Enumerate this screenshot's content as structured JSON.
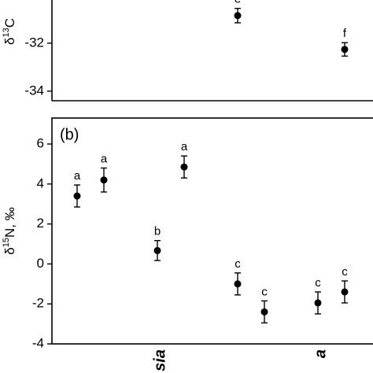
{
  "chart_data": [
    {
      "type": "dot",
      "ylabel": [
        "δ",
        "13",
        "C"
      ],
      "categories": [
        null,
        null,
        null,
        null,
        null,
        null,
        null,
        null,
        null,
        null,
        null
      ],
      "values": [
        null,
        null,
        null,
        null,
        null,
        null,
        -30.85,
        null,
        null,
        null,
        -32.26
      ],
      "errors": [
        null,
        null,
        null,
        null,
        null,
        null,
        0.3,
        null,
        null,
        null,
        0.28
      ],
      "point_labels": [
        null,
        null,
        null,
        null,
        null,
        null,
        "e",
        null,
        null,
        null,
        "f"
      ],
      "color": "#000000",
      "ylim": [
        -34.4,
        -30.2
      ],
      "yticks": [
        -32,
        -34
      ]
    },
    {
      "type": "dot",
      "panel_label": "(b)",
      "ylabel": [
        "δ",
        "15",
        "N, ‰"
      ],
      "categories": [
        null,
        null,
        null,
        "sia",
        null,
        null,
        null,
        null,
        null,
        "a",
        null
      ],
      "values": [
        3.4,
        4.2,
        null,
        0.67,
        4.85,
        null,
        -1.0,
        -2.4,
        null,
        -1.95,
        -1.4
      ],
      "errors": [
        0.55,
        0.6,
        null,
        0.5,
        0.55,
        null,
        0.55,
        0.55,
        null,
        0.55,
        0.55
      ],
      "point_labels": [
        "a",
        "a",
        null,
        "b",
        "a",
        null,
        "c",
        "c",
        null,
        "c",
        "c"
      ],
      "color": "#000000",
      "ylim": [
        -4,
        7.3
      ],
      "yticks": [
        6,
        4,
        2,
        0,
        -2,
        -4
      ]
    }
  ]
}
